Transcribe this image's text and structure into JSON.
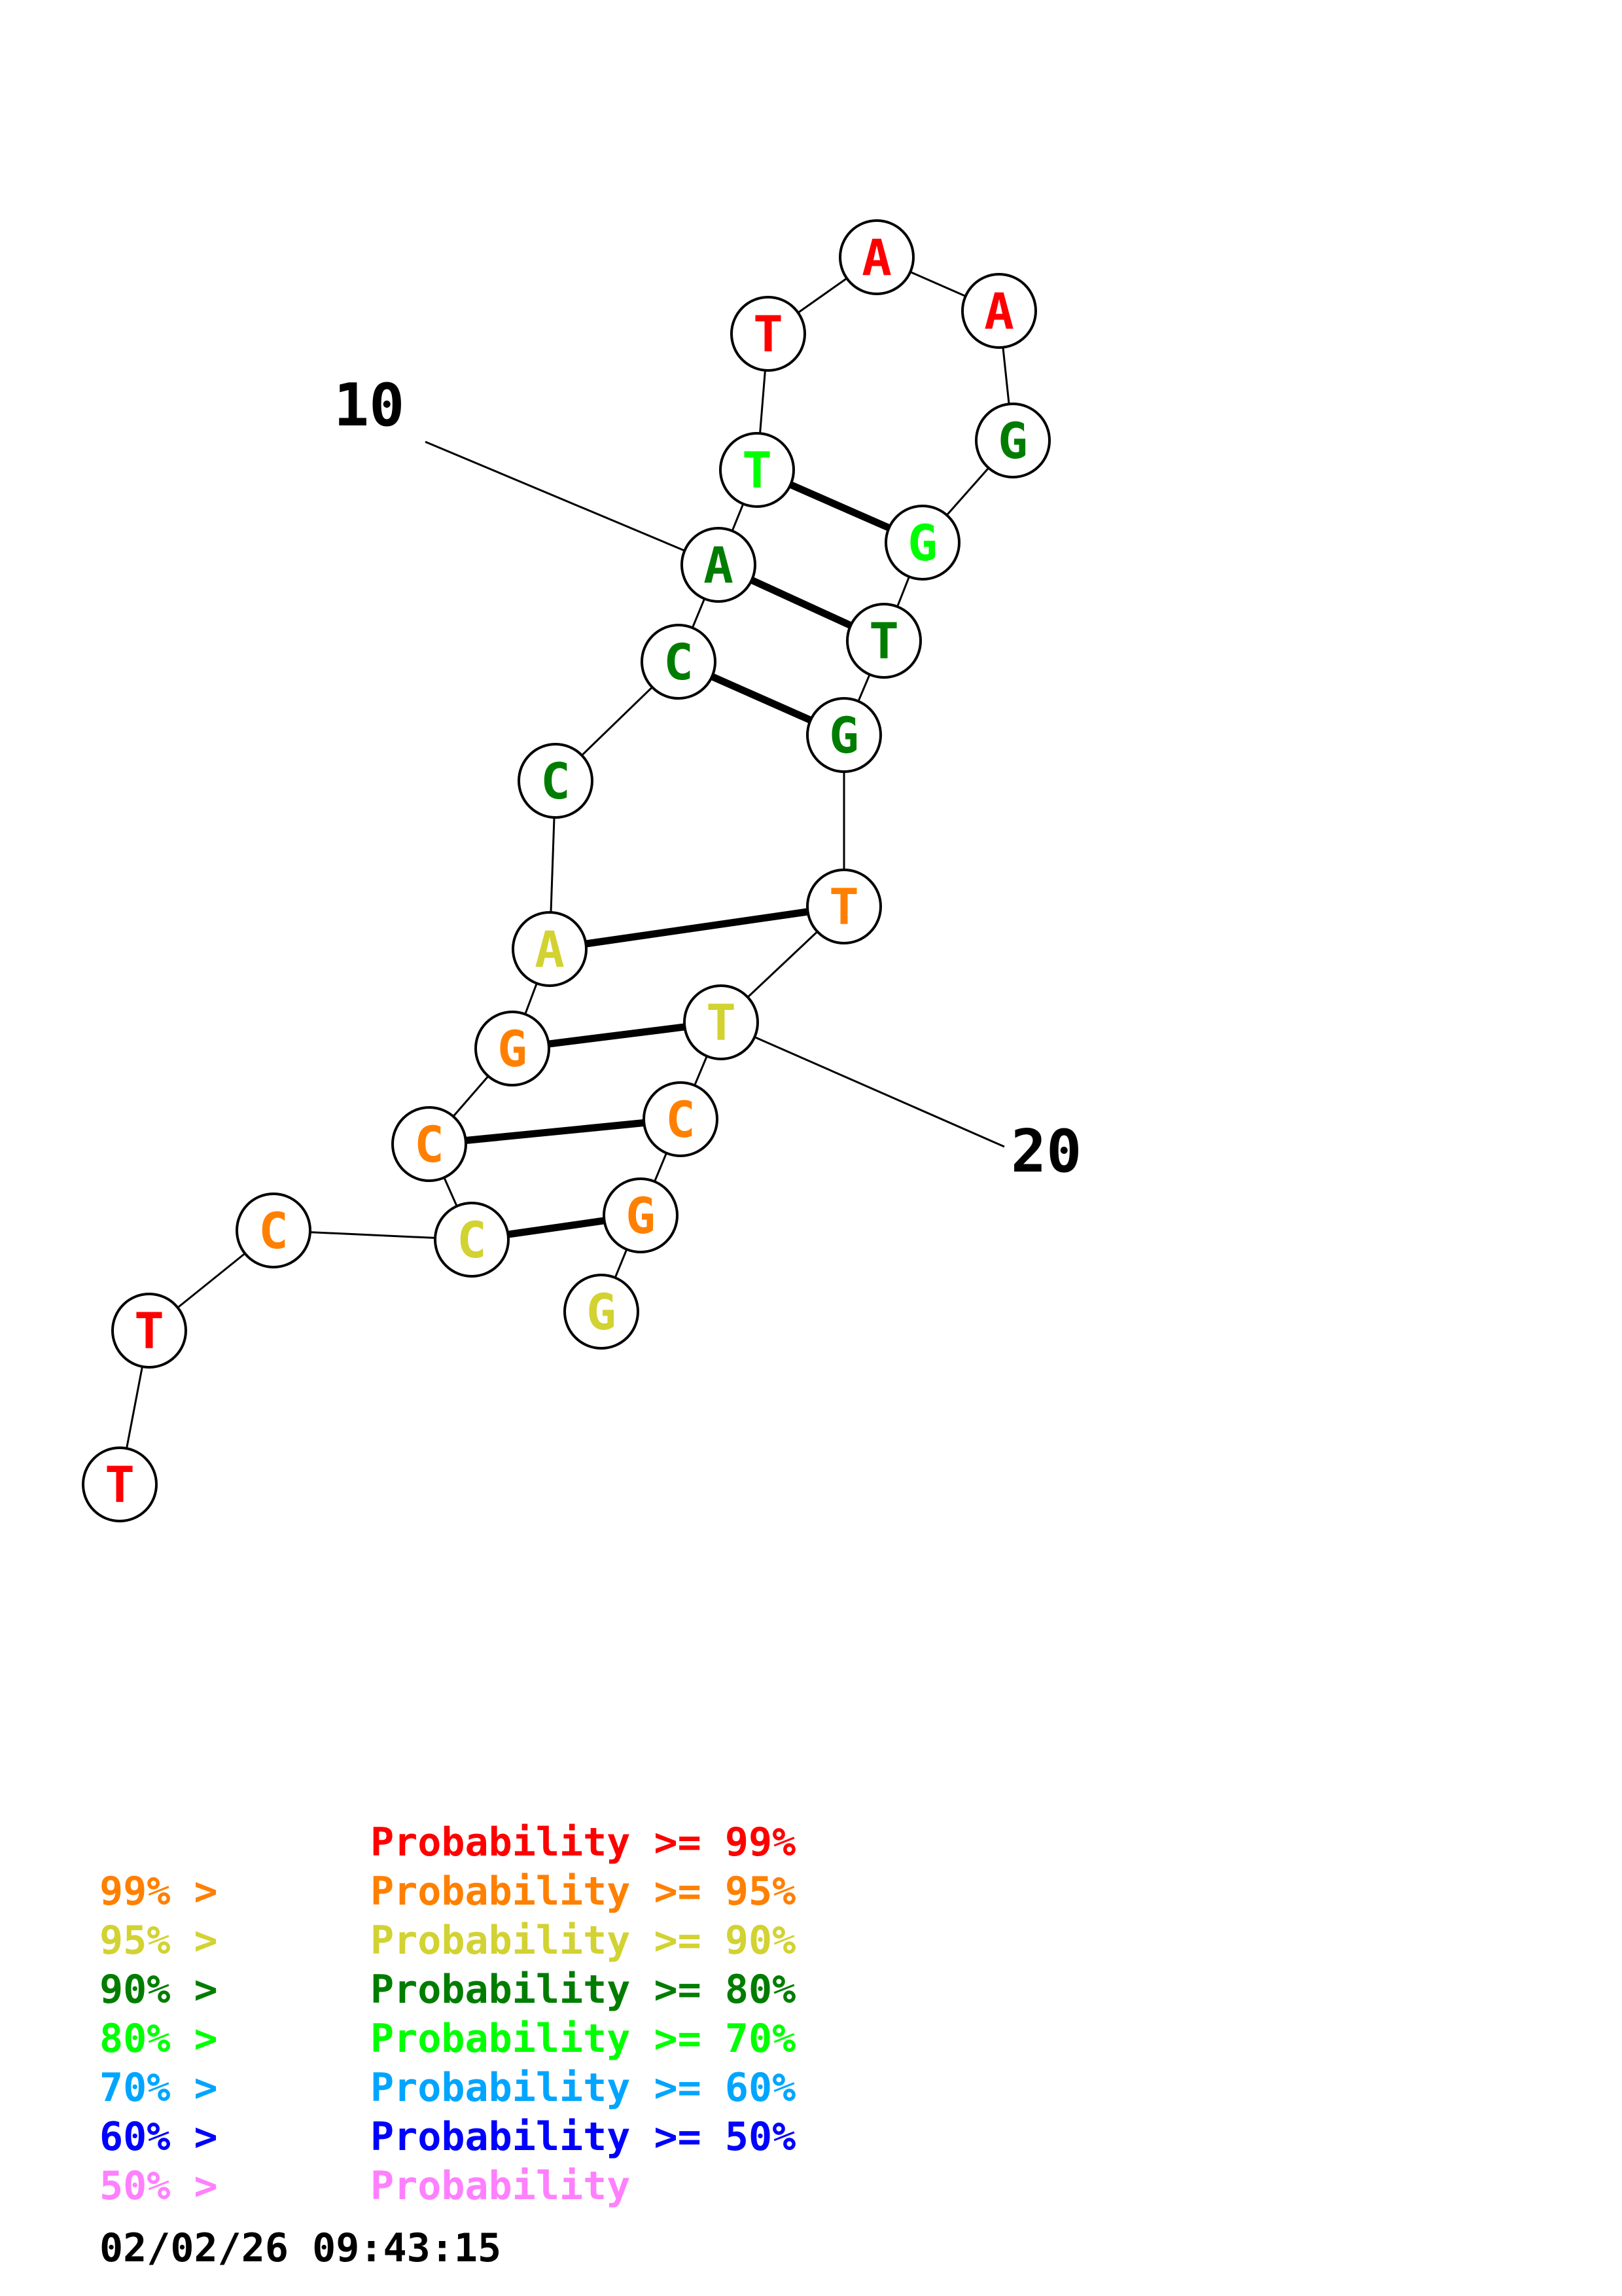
{
  "structure": {
    "sequence": [
      "T",
      "T",
      "C",
      "C",
      "C",
      "G",
      "A",
      "C",
      "C",
      "A",
      "T",
      "T",
      "A",
      "A",
      "G",
      "G",
      "T",
      "G",
      "T",
      "T",
      "C",
      "G",
      "G"
    ],
    "prob_class": [
      0,
      0,
      1,
      2,
      1,
      1,
      2,
      3,
      3,
      3,
      4,
      0,
      0,
      0,
      3,
      4,
      3,
      3,
      1,
      2,
      1,
      1,
      2
    ],
    "pairs": [
      [
        4,
        22
      ],
      [
        5,
        21
      ],
      [
        6,
        20
      ],
      [
        7,
        19
      ],
      [
        9,
        18
      ],
      [
        10,
        17
      ],
      [
        11,
        16
      ]
    ],
    "position_labels": [
      {
        "position": 10,
        "text": "10"
      },
      {
        "position": 20,
        "text": "20"
      }
    ]
  },
  "legend": {
    "colors": [
      "#ff0000",
      "#ff8000",
      "#d2d232",
      "#007d00",
      "#00ff00",
      "#00a5ff",
      "#0000ff",
      "#ff80ff"
    ],
    "rows": [
      {
        "left": "",
        "right": "Probability >= 99%"
      },
      {
        "left": "99% >",
        "right": "Probability >= 95%"
      },
      {
        "left": "95% >",
        "right": "Probability >= 90%"
      },
      {
        "left": "90% >",
        "right": "Probability >= 80%"
      },
      {
        "left": "80% >",
        "right": "Probability >= 70%"
      },
      {
        "left": "70% >",
        "right": "Probability >= 60%"
      },
      {
        "left": "60% >",
        "right": "Probability >= 50%"
      },
      {
        "left": "50% >",
        "right": "Probability"
      }
    ]
  },
  "timestamp": "02/02/26 09:43:15"
}
